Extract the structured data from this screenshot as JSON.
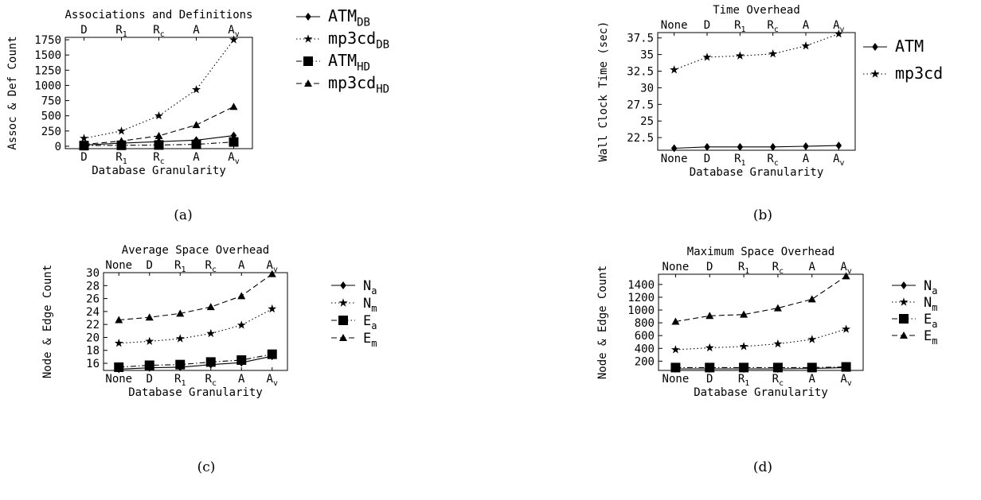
{
  "chart_data": [
    {
      "id": "a",
      "type": "line",
      "caption": "(a)",
      "title": "Associations and Definitions",
      "xlabel": "Database Granularity",
      "ylabel": "Assoc & Def Count",
      "categories": [
        "D",
        "R1",
        "Rc",
        "A",
        "Av"
      ],
      "yticks": [
        0,
        250,
        500,
        750,
        1000,
        1250,
        1500,
        1750
      ],
      "ylim": [
        -40,
        1790
      ],
      "legend_position": "right",
      "series": [
        {
          "name": "ATM_DB",
          "marker": "diamond",
          "dash": "solid",
          "values": [
            20,
            50,
            75,
            100,
            175
          ]
        },
        {
          "name": "mp3cd_DB",
          "marker": "star",
          "dash": "dotted",
          "values": [
            130,
            250,
            500,
            930,
            1750
          ]
        },
        {
          "name": "ATM_HD",
          "marker": "square",
          "dash": "dashdot",
          "values": [
            10,
            15,
            20,
            30,
            70
          ]
        },
        {
          "name": "mp3cd_HD",
          "marker": "triangle",
          "dash": "dashed",
          "values": [
            30,
            85,
            170,
            350,
            650
          ]
        }
      ]
    },
    {
      "id": "b",
      "type": "line",
      "caption": "(b)",
      "title": "Time Overhead",
      "xlabel": "Database Granularity",
      "ylabel": "Wall Clock Time (sec)",
      "categories": [
        "None",
        "D",
        "R1",
        "Rc",
        "A",
        "Av"
      ],
      "yticks": [
        22.5,
        25,
        27.5,
        30,
        32.5,
        35,
        37.5
      ],
      "ylim": [
        20.6,
        38.3
      ],
      "legend_position": "right",
      "series": [
        {
          "name": "ATM",
          "marker": "diamond",
          "dash": "solid",
          "values": [
            20.9,
            21.1,
            21.1,
            21.1,
            21.2,
            21.3
          ]
        },
        {
          "name": "mp3cd",
          "marker": "star",
          "dash": "dotted",
          "values": [
            32.7,
            34.6,
            34.8,
            35.1,
            36.3,
            38.1
          ]
        }
      ]
    },
    {
      "id": "c",
      "type": "line",
      "caption": "(c)",
      "title": "Average Space Overhead",
      "xlabel": "Database Granularity",
      "ylabel": "Node & Edge Count",
      "categories": [
        "None",
        "D",
        "R1",
        "Rc",
        "A",
        "Av"
      ],
      "yticks": [
        16,
        18,
        20,
        22,
        24,
        26,
        28,
        30
      ],
      "ylim": [
        14.9,
        30
      ],
      "legend_position": "right",
      "series": [
        {
          "name": "Na",
          "marker": "diamond",
          "dash": "solid",
          "values": [
            15.1,
            15.3,
            15.4,
            15.8,
            16.1,
            17.1
          ]
        },
        {
          "name": "Nm",
          "marker": "star",
          "dash": "dotted",
          "values": [
            19.1,
            19.4,
            19.8,
            20.6,
            21.9,
            24.4
          ]
        },
        {
          "name": "Ea",
          "marker": "square",
          "dash": "dashdot",
          "values": [
            15.4,
            15.7,
            15.8,
            16.2,
            16.5,
            17.4
          ]
        },
        {
          "name": "Em",
          "marker": "triangle",
          "dash": "dashed",
          "values": [
            22.7,
            23.1,
            23.7,
            24.7,
            26.4,
            29.8
          ]
        }
      ]
    },
    {
      "id": "d",
      "type": "line",
      "caption": "(d)",
      "title": "Maximum Space Overhead",
      "xlabel": "Database Granularity",
      "ylabel": "Node & Edge Count",
      "categories": [
        "None",
        "D",
        "R1",
        "Rc",
        "A",
        "Av"
      ],
      "yticks": [
        200,
        400,
        600,
        800,
        1000,
        1200,
        1400
      ],
      "ylim": [
        55,
        1560
      ],
      "legend_position": "right",
      "series": [
        {
          "name": "Na",
          "marker": "diamond",
          "dash": "solid",
          "values": [
            80,
            80,
            80,
            80,
            85,
            100
          ]
        },
        {
          "name": "Nm",
          "marker": "star",
          "dash": "dotted",
          "values": [
            380,
            410,
            430,
            470,
            540,
            700
          ]
        },
        {
          "name": "Ea",
          "marker": "square",
          "dash": "dashdot",
          "values": [
            100,
            100,
            100,
            100,
            100,
            110
          ]
        },
        {
          "name": "Em",
          "marker": "triangle",
          "dash": "dashed",
          "values": [
            820,
            910,
            930,
            1030,
            1170,
            1530
          ]
        }
      ]
    }
  ]
}
